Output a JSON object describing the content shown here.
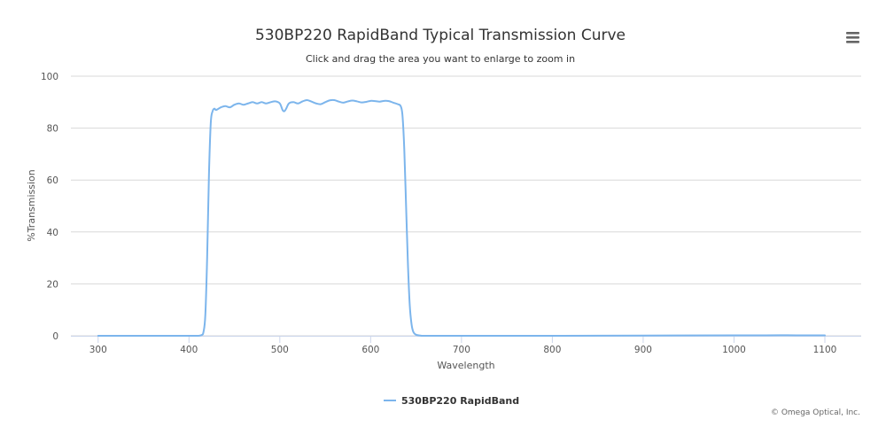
{
  "chart_data": {
    "type": "line",
    "title": "530BP220 RapidBand Typical Transmission Curve",
    "subtitle": "Click and drag the area you want to enlarge to zoom in",
    "xlabel": "Wavelength",
    "ylabel": "%Transmission",
    "xlim": [
      270,
      1140
    ],
    "ylim": [
      0,
      100
    ],
    "xticks": [
      "300",
      "400",
      "500",
      "600",
      "700",
      "800",
      "900",
      "1000",
      "1100"
    ],
    "yticks": [
      "0",
      "20",
      "40",
      "60",
      "80",
      "100"
    ],
    "grid": true,
    "legend_position": "bottom",
    "series": [
      {
        "name": "530BP220 RapidBand",
        "color": "#7cb5ec",
        "x": [
          300,
          350,
          400,
          410,
          414,
          416,
          418,
          420,
          422,
          424,
          426,
          428,
          430,
          435,
          440,
          445,
          450,
          455,
          460,
          465,
          470,
          475,
          480,
          485,
          490,
          495,
          500,
          503,
          505,
          507,
          510,
          515,
          520,
          525,
          530,
          535,
          540,
          545,
          550,
          555,
          560,
          565,
          570,
          575,
          580,
          585,
          590,
          595,
          600,
          605,
          610,
          615,
          620,
          625,
          630,
          633,
          635,
          637,
          639,
          641,
          643,
          645,
          647,
          650,
          655,
          660,
          700,
          800,
          900,
          1000,
          1050,
          1100
        ],
        "y": [
          0,
          0,
          0,
          0,
          0.3,
          1.5,
          8,
          30,
          62,
          82,
          86.5,
          87.5,
          87,
          88,
          88.5,
          88,
          89,
          89.5,
          89,
          89.5,
          90,
          89.5,
          90,
          89.5,
          90,
          90.3,
          89.5,
          87,
          86.5,
          87.5,
          89.5,
          90,
          89.5,
          90.3,
          90.8,
          90.2,
          89.5,
          89.2,
          90,
          90.7,
          90.8,
          90.2,
          89.8,
          90.3,
          90.6,
          90.3,
          89.9,
          90.1,
          90.5,
          90.4,
          90.2,
          90.5,
          90.4,
          89.8,
          89.2,
          88.5,
          85,
          72,
          50,
          28,
          12,
          4.5,
          1.5,
          0.4,
          0.1,
          0,
          0,
          0,
          0.1,
          0.15,
          0.2,
          0.15
        ]
      }
    ]
  },
  "credit": "© Omega Optical, Inc.",
  "menu_icon": "hamburger-menu-icon"
}
